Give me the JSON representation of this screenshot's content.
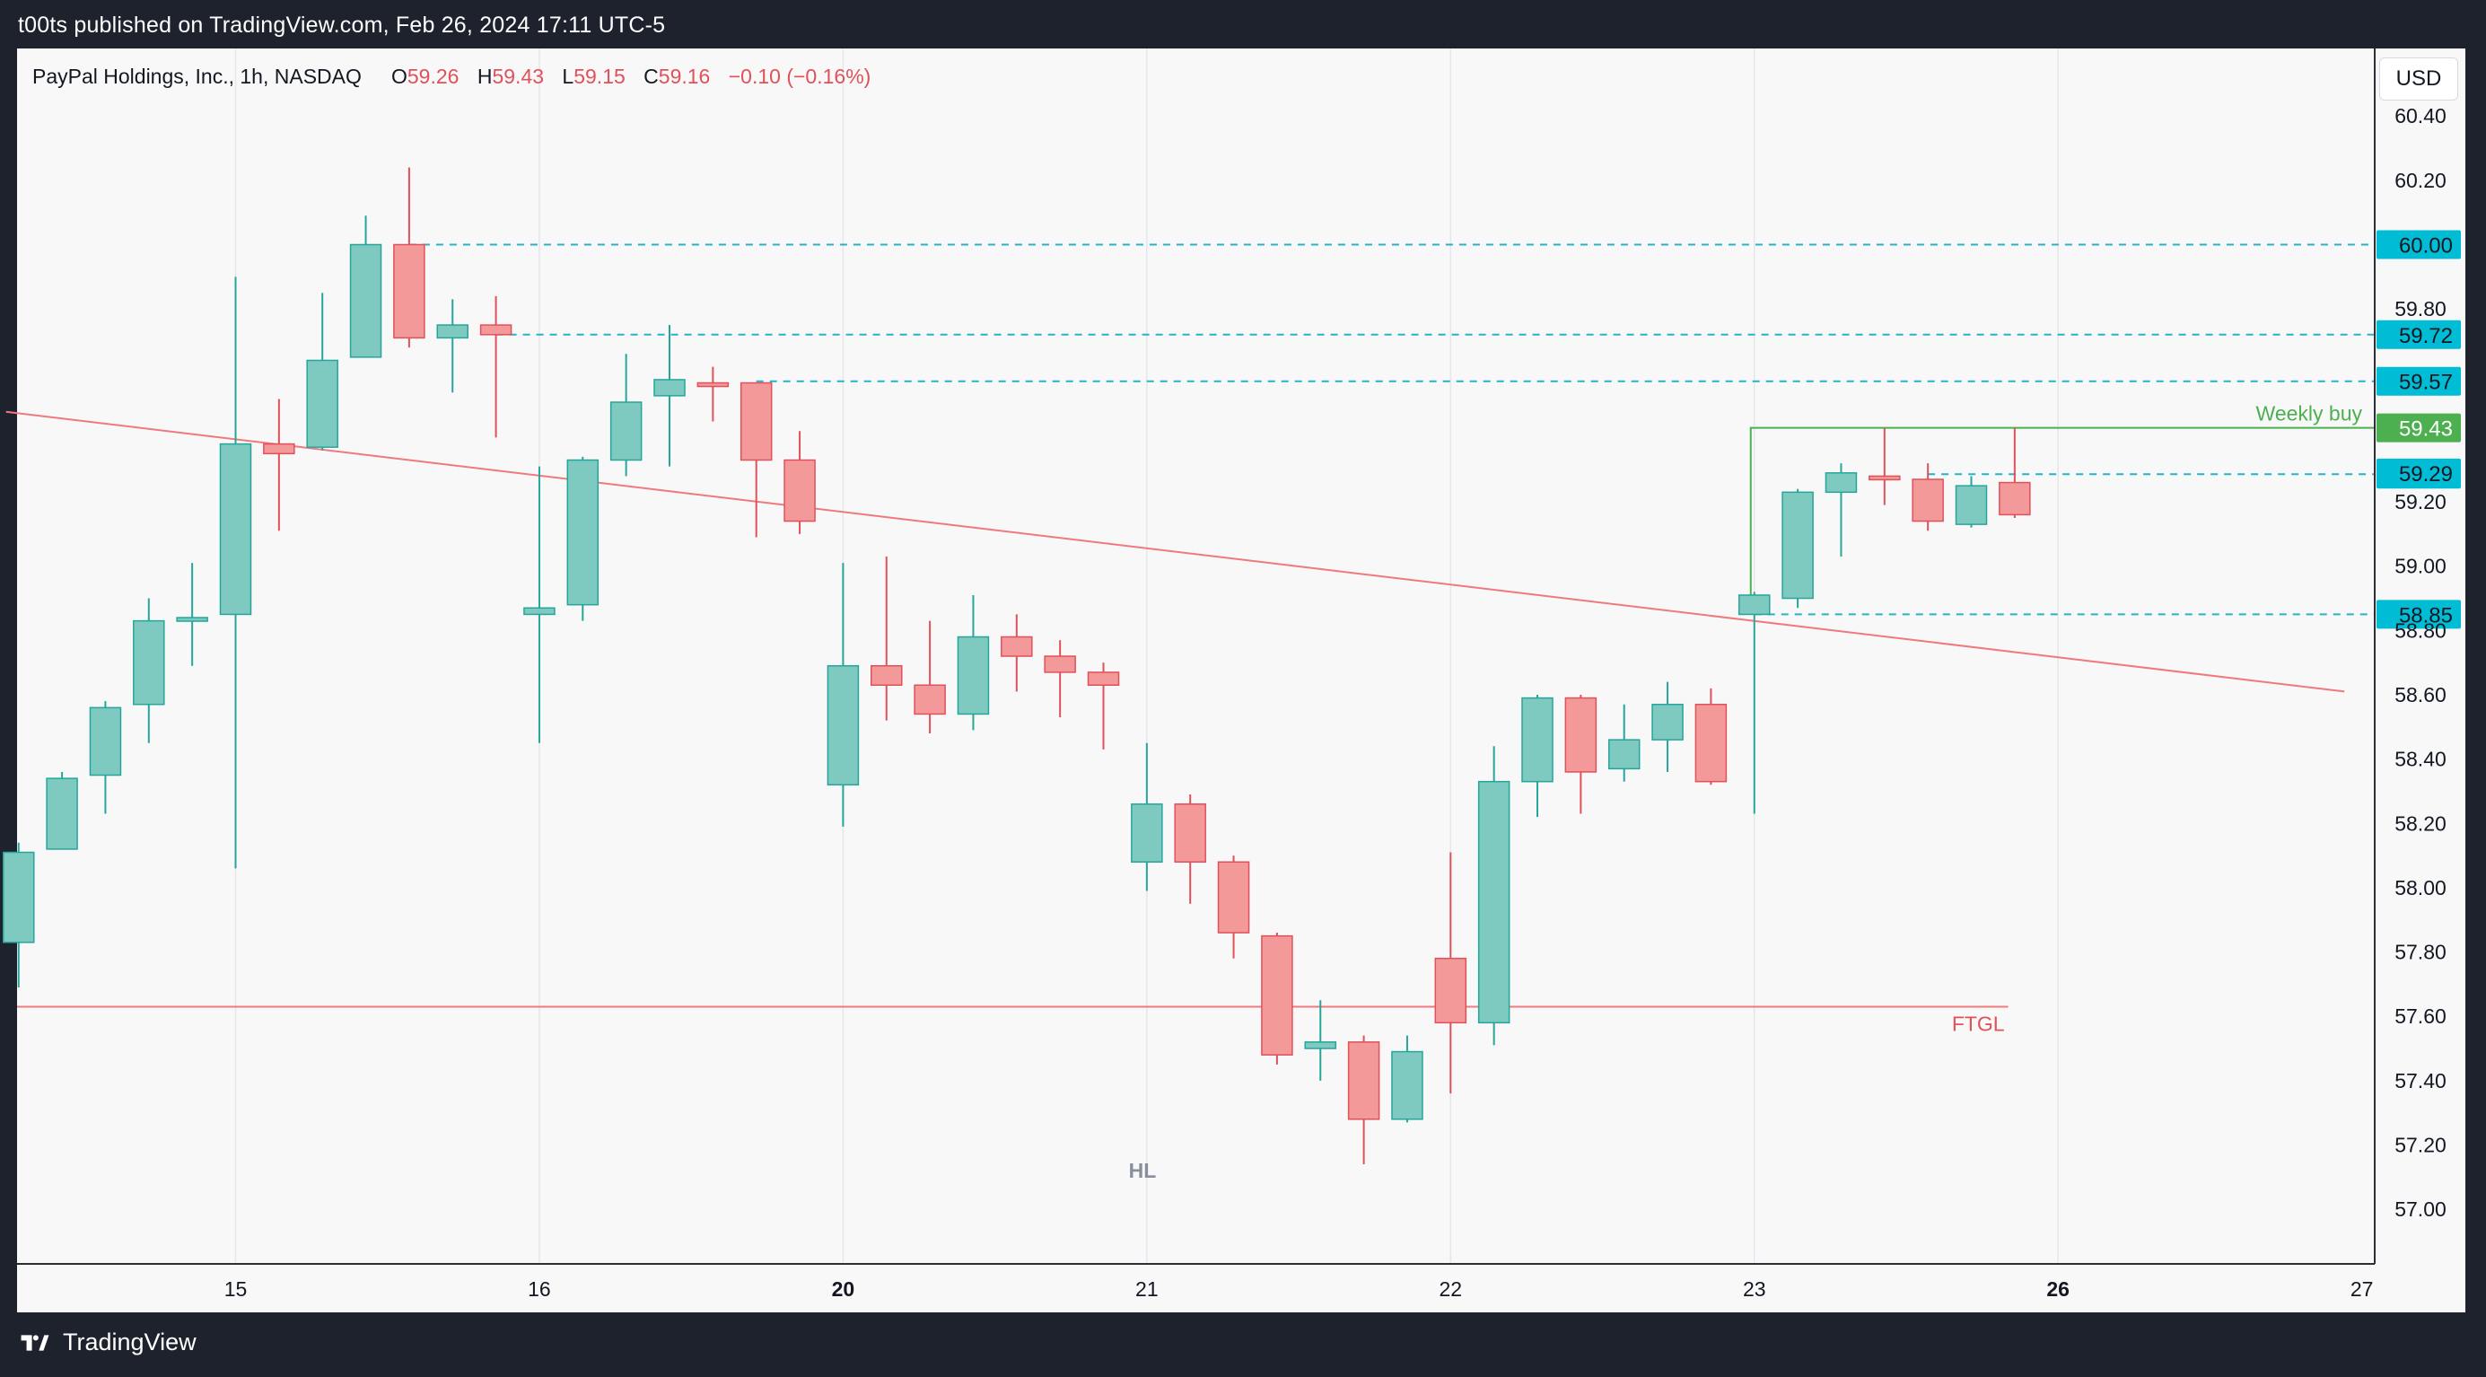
{
  "header": {
    "published": "t00ts published on TradingView.com, Feb 26, 2024 17:11 UTC-5"
  },
  "legend": {
    "symbol": "PayPal Holdings, Inc., 1h, NASDAQ",
    "o_label": "O",
    "o_value": "59.26",
    "h_label": "H",
    "h_value": "59.43",
    "l_label": "L",
    "l_value": "59.15",
    "c_label": "C",
    "c_value": "59.16",
    "change": "−0.10 (−0.16%)"
  },
  "currency": "USD",
  "footer": {
    "brand": "TradingView"
  },
  "colors": {
    "up": "#7ecac0",
    "up_border": "#26a69a",
    "down": "#f4999a",
    "down_border": "#e0515a",
    "level_line": "#26b3c9",
    "level_badge": "#00bcd4",
    "trend": "#ef7a7d",
    "weekly": "#4caf50",
    "legend_value": "#e0515a"
  },
  "chart_data": {
    "type": "candlestick",
    "title": "PayPal Holdings, Inc., 1h, NASDAQ",
    "ylim": [
      56.83,
      60.61
    ],
    "y_ticks": [
      "60.40",
      "60.20",
      "59.80",
      "59.20",
      "59.00",
      "58.80",
      "58.60",
      "58.40",
      "58.20",
      "58.00",
      "57.80",
      "57.60",
      "57.40",
      "57.20",
      "57.00"
    ],
    "x_ticks": [
      {
        "label": "15",
        "i": 5,
        "bold": false
      },
      {
        "label": "16",
        "i": 12,
        "bold": false
      },
      {
        "label": "20",
        "i": 19,
        "bold": true
      },
      {
        "label": "21",
        "i": 26,
        "bold": false
      },
      {
        "label": "22",
        "i": 33,
        "bold": false
      },
      {
        "label": "23",
        "i": 40,
        "bold": false
      },
      {
        "label": "26",
        "i": 47,
        "bold": true
      },
      {
        "label": "27",
        "i": 54,
        "bold": false
      }
    ],
    "candles": [
      {
        "o": 57.83,
        "h": 58.14,
        "l": 57.69,
        "c": 58.11
      },
      {
        "o": 58.12,
        "h": 58.36,
        "l": 58.12,
        "c": 58.34
      },
      {
        "o": 58.35,
        "h": 58.58,
        "l": 58.23,
        "c": 58.56
      },
      {
        "o": 58.57,
        "h": 58.9,
        "l": 58.45,
        "c": 58.83
      },
      {
        "o": 58.83,
        "h": 59.01,
        "l": 58.69,
        "c": 58.84
      },
      {
        "o": 58.85,
        "h": 59.9,
        "l": 58.06,
        "c": 59.38
      },
      {
        "o": 59.38,
        "h": 59.52,
        "l": 59.11,
        "c": 59.35
      },
      {
        "o": 59.37,
        "h": 59.85,
        "l": 59.36,
        "c": 59.64
      },
      {
        "o": 59.65,
        "h": 60.09,
        "l": 59.65,
        "c": 60.0
      },
      {
        "o": 60.0,
        "h": 60.24,
        "l": 59.68,
        "c": 59.71
      },
      {
        "o": 59.71,
        "h": 59.83,
        "l": 59.54,
        "c": 59.75
      },
      {
        "o": 59.75,
        "h": 59.84,
        "l": 59.4,
        "c": 59.72
      },
      {
        "o": 58.85,
        "h": 59.31,
        "l": 58.45,
        "c": 58.87
      },
      {
        "o": 58.88,
        "h": 59.34,
        "l": 58.83,
        "c": 59.33
      },
      {
        "o": 59.33,
        "h": 59.66,
        "l": 59.28,
        "c": 59.51
      },
      {
        "o": 59.53,
        "h": 59.75,
        "l": 59.31,
        "c": 59.58
      },
      {
        "o": 59.57,
        "h": 59.62,
        "l": 59.45,
        "c": 59.56
      },
      {
        "o": 59.57,
        "h": 59.57,
        "l": 59.09,
        "c": 59.33
      },
      {
        "o": 59.33,
        "h": 59.42,
        "l": 59.1,
        "c": 59.14
      },
      {
        "o": 58.32,
        "h": 59.01,
        "l": 58.19,
        "c": 58.69
      },
      {
        "o": 58.69,
        "h": 59.03,
        "l": 58.52,
        "c": 58.63
      },
      {
        "o": 58.63,
        "h": 58.83,
        "l": 58.48,
        "c": 58.54
      },
      {
        "o": 58.54,
        "h": 58.91,
        "l": 58.49,
        "c": 58.78
      },
      {
        "o": 58.78,
        "h": 58.85,
        "l": 58.61,
        "c": 58.72
      },
      {
        "o": 58.72,
        "h": 58.77,
        "l": 58.53,
        "c": 58.67
      },
      {
        "o": 58.67,
        "h": 58.7,
        "l": 58.43,
        "c": 58.63
      },
      {
        "o": 58.08,
        "h": 58.45,
        "l": 57.99,
        "c": 58.26
      },
      {
        "o": 58.26,
        "h": 58.29,
        "l": 57.95,
        "c": 58.08
      },
      {
        "o": 58.08,
        "h": 58.1,
        "l": 57.78,
        "c": 57.86
      },
      {
        "o": 57.85,
        "h": 57.86,
        "l": 57.45,
        "c": 57.48
      },
      {
        "o": 57.5,
        "h": 57.65,
        "l": 57.4,
        "c": 57.52
      },
      {
        "o": 57.52,
        "h": 57.54,
        "l": 57.14,
        "c": 57.28
      },
      {
        "o": 57.28,
        "h": 57.54,
        "l": 57.27,
        "c": 57.49
      },
      {
        "o": 57.78,
        "h": 58.11,
        "l": 57.36,
        "c": 57.58
      },
      {
        "o": 57.58,
        "h": 58.44,
        "l": 57.51,
        "c": 58.33
      },
      {
        "o": 58.33,
        "h": 58.6,
        "l": 58.22,
        "c": 58.59
      },
      {
        "o": 58.59,
        "h": 58.6,
        "l": 58.23,
        "c": 58.36
      },
      {
        "o": 58.37,
        "h": 58.57,
        "l": 58.33,
        "c": 58.46
      },
      {
        "o": 58.46,
        "h": 58.64,
        "l": 58.36,
        "c": 58.57
      },
      {
        "o": 58.57,
        "h": 58.62,
        "l": 58.32,
        "c": 58.33
      },
      {
        "o": 58.85,
        "h": 58.92,
        "l": 58.23,
        "c": 58.91
      },
      {
        "o": 58.9,
        "h": 59.24,
        "l": 58.87,
        "c": 59.23
      },
      {
        "o": 59.23,
        "h": 59.32,
        "l": 59.03,
        "c": 59.29
      },
      {
        "o": 59.28,
        "h": 59.43,
        "l": 59.19,
        "c": 59.27
      },
      {
        "o": 59.27,
        "h": 59.32,
        "l": 59.11,
        "c": 59.14
      },
      {
        "o": 59.13,
        "h": 59.28,
        "l": 59.12,
        "c": 59.25
      },
      {
        "o": 59.26,
        "h": 59.43,
        "l": 59.15,
        "c": 59.16
      }
    ],
    "levels": [
      {
        "label": "60.00",
        "value": 60.0,
        "from_i": 9
      },
      {
        "label": "59.72",
        "value": 59.72,
        "from_i": 11
      },
      {
        "label": "59.57",
        "value": 59.575,
        "from_i": 17
      },
      {
        "label": "59.29",
        "value": 59.286,
        "from_i": 44
      },
      {
        "label": "58.85",
        "value": 58.85,
        "from_i": 40
      }
    ],
    "extra_badge": {
      "label": "59.29",
      "value": 59.29
    },
    "weekly_buy": {
      "label": "Weekly buy",
      "badge": "59.43",
      "value": 59.43,
      "from_i": 40
    },
    "trendline": {
      "from": {
        "i": -0.29,
        "v": 59.48
      },
      "to": {
        "i": 53.6,
        "v": 58.61
      }
    },
    "ftgl": {
      "label": "FTGL",
      "value": 57.63,
      "to_i": 45.85
    },
    "note": {
      "label": "HL",
      "i": 25.9,
      "v": 57.12
    }
  }
}
